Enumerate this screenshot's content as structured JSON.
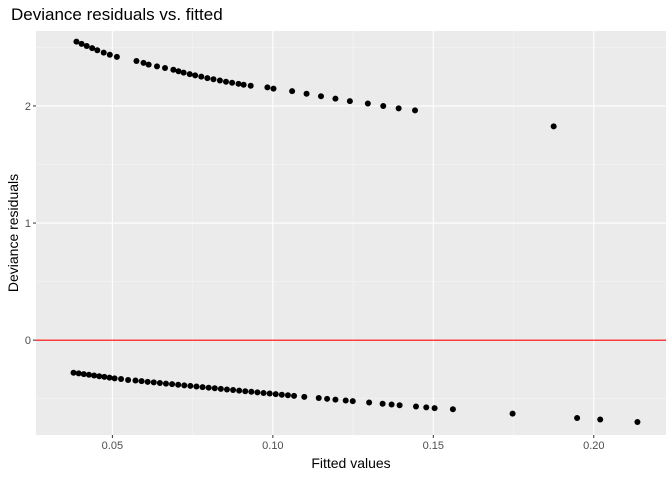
{
  "chart_data": {
    "type": "scatter",
    "title": "Deviance residuals vs. fitted",
    "xlabel": "Fitted values",
    "ylabel": "Deviance residuals",
    "xlim": [
      0.0262,
      0.2225
    ],
    "ylim": [
      -0.81,
      2.64
    ],
    "x_ticks": [
      0.05,
      0.1,
      0.15,
      0.2
    ],
    "x_tick_labels": [
      "0.05",
      "0.10",
      "0.15",
      "0.20"
    ],
    "y_ticks": [
      0,
      1,
      2
    ],
    "y_tick_labels": [
      "0",
      "1",
      "2"
    ],
    "grid": true,
    "legend": "none",
    "colors": {
      "panel": "#ebebeb",
      "grid_major": "#ffffff",
      "grid_minor": "#f5f5f5",
      "points": "#000000",
      "reference_line": "#ff0000"
    },
    "reference_line": {
      "orientation": "horizontal",
      "y": 0
    },
    "series": [
      {
        "values": [
          [
            0.0388,
            2.549
          ],
          [
            0.0404,
            2.53
          ],
          [
            0.042,
            2.512
          ],
          [
            0.0437,
            2.494
          ],
          [
            0.0453,
            2.476
          ],
          [
            0.0473,
            2.455
          ],
          [
            0.0492,
            2.437
          ],
          [
            0.0514,
            2.419
          ],
          [
            0.0575,
            2.384
          ],
          [
            0.0597,
            2.368
          ],
          [
            0.0613,
            2.353
          ],
          [
            0.0639,
            2.338
          ],
          [
            0.0664,
            2.324
          ],
          [
            0.069,
            2.309
          ],
          [
            0.0706,
            2.296
          ],
          [
            0.0722,
            2.285
          ],
          [
            0.0741,
            2.272
          ],
          [
            0.0758,
            2.261
          ],
          [
            0.0777,
            2.25
          ],
          [
            0.0796,
            2.238
          ],
          [
            0.0815,
            2.228
          ],
          [
            0.0835,
            2.217
          ],
          [
            0.0854,
            2.207
          ],
          [
            0.0873,
            2.198
          ],
          [
            0.0893,
            2.189
          ],
          [
            0.0909,
            2.181
          ],
          [
            0.0931,
            2.172
          ],
          [
            0.0983,
            2.159
          ],
          [
            0.1002,
            2.148
          ],
          [
            0.106,
            2.127
          ],
          [
            0.1105,
            2.104
          ],
          [
            0.115,
            2.083
          ],
          [
            0.1195,
            2.062
          ],
          [
            0.124,
            2.041
          ],
          [
            0.1296,
            2.021
          ],
          [
            0.1344,
            2.0
          ],
          [
            0.1392,
            1.979
          ],
          [
            0.1443,
            1.962
          ],
          [
            0.1875,
            1.826
          ],
          [
            0.0379,
            -0.278
          ],
          [
            0.0395,
            -0.284
          ],
          [
            0.0411,
            -0.29
          ],
          [
            0.0427,
            -0.296
          ],
          [
            0.0443,
            -0.302
          ],
          [
            0.0459,
            -0.308
          ],
          [
            0.0475,
            -0.314
          ],
          [
            0.0491,
            -0.32
          ],
          [
            0.0507,
            -0.326
          ],
          [
            0.0527,
            -0.332
          ],
          [
            0.0549,
            -0.34
          ],
          [
            0.0572,
            -0.345
          ],
          [
            0.0591,
            -0.35
          ],
          [
            0.061,
            -0.356
          ],
          [
            0.0629,
            -0.361
          ],
          [
            0.0648,
            -0.366
          ],
          [
            0.0667,
            -0.371
          ],
          [
            0.0686,
            -0.376
          ],
          [
            0.0705,
            -0.381
          ],
          [
            0.0724,
            -0.386
          ],
          [
            0.0743,
            -0.391
          ],
          [
            0.0762,
            -0.396
          ],
          [
            0.0781,
            -0.401
          ],
          [
            0.08,
            -0.406
          ],
          [
            0.0819,
            -0.411
          ],
          [
            0.0838,
            -0.416
          ],
          [
            0.0857,
            -0.421
          ],
          [
            0.0876,
            -0.426
          ],
          [
            0.0895,
            -0.431
          ],
          [
            0.0914,
            -0.436
          ],
          [
            0.0933,
            -0.441
          ],
          [
            0.0952,
            -0.446
          ],
          [
            0.0971,
            -0.451
          ],
          [
            0.099,
            -0.456
          ],
          [
            0.1009,
            -0.461
          ],
          [
            0.1028,
            -0.466
          ],
          [
            0.1047,
            -0.471
          ],
          [
            0.1066,
            -0.476
          ],
          [
            0.1098,
            -0.484
          ],
          [
            0.1143,
            -0.494
          ],
          [
            0.1169,
            -0.501
          ],
          [
            0.1195,
            -0.508
          ],
          [
            0.1227,
            -0.515
          ],
          [
            0.1249,
            -0.521
          ],
          [
            0.13,
            -0.532
          ],
          [
            0.1342,
            -0.543
          ],
          [
            0.137,
            -0.55
          ],
          [
            0.1395,
            -0.556
          ],
          [
            0.1446,
            -0.567
          ],
          [
            0.1478,
            -0.574
          ],
          [
            0.1504,
            -0.58
          ],
          [
            0.1561,
            -0.59
          ],
          [
            0.1747,
            -0.627
          ],
          [
            0.1948,
            -0.665
          ],
          [
            0.202,
            -0.678
          ],
          [
            0.2136,
            -0.699
          ]
        ]
      }
    ]
  }
}
